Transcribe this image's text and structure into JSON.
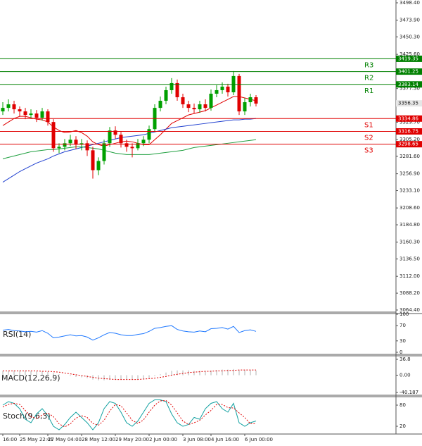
{
  "chart_data": [
    {
      "type": "candlestick",
      "open": [
        3345,
        3350,
        3355,
        3348,
        3345,
        3340,
        3342,
        3336,
        3345,
        3330,
        3293,
        3295,
        3300,
        3305,
        3298,
        3300,
        3290,
        3262,
        3275,
        3300,
        3318,
        3312,
        3300,
        3295,
        3293,
        3300,
        3305,
        3320,
        3350,
        3360,
        3375,
        3385,
        3365,
        3355,
        3350,
        3348,
        3355,
        3350,
        3370,
        3375,
        3380,
        3372,
        3395,
        3345,
        3358,
        3365
      ],
      "high": [
        3358,
        3362,
        3360,
        3352,
        3350,
        3348,
        3347,
        3350,
        3348,
        3334,
        3300,
        3306,
        3312,
        3310,
        3306,
        3304,
        3295,
        3280,
        3305,
        3323,
        3324,
        3316,
        3305,
        3300,
        3306,
        3310,
        3325,
        3355,
        3366,
        3380,
        3392,
        3390,
        3370,
        3360,
        3356,
        3360,
        3362,
        3376,
        3382,
        3386,
        3384,
        3402,
        3398,
        3364,
        3370,
        3368
      ],
      "low": [
        3340,
        3345,
        3342,
        3338,
        3334,
        3335,
        3330,
        3332,
        3325,
        3288,
        3286,
        3290,
        3296,
        3292,
        3290,
        3282,
        3250,
        3255,
        3270,
        3295,
        3306,
        3294,
        3288,
        3280,
        3290,
        3296,
        3300,
        3316,
        3345,
        3355,
        3370,
        3360,
        3350,
        3344,
        3342,
        3343,
        3345,
        3346,
        3365,
        3370,
        3366,
        3368,
        3340,
        3340,
        3352,
        3352
      ],
      "close": [
        3350,
        3355,
        3348,
        3345,
        3340,
        3342,
        3336,
        3345,
        3330,
        3293,
        3295,
        3300,
        3305,
        3298,
        3300,
        3290,
        3262,
        3275,
        3300,
        3318,
        3312,
        3300,
        3295,
        3293,
        3300,
        3305,
        3320,
        3350,
        3360,
        3375,
        3385,
        3365,
        3355,
        3350,
        3348,
        3355,
        3350,
        3370,
        3375,
        3380,
        3372,
        3395,
        3345,
        3358,
        3365,
        3356
      ],
      "up_color": "#00a000",
      "down_color": "#e00000",
      "overlays": [
        {
          "color": "#e00000",
          "values": [
            3325,
            3330,
            3335,
            3338,
            3338,
            3336,
            3334,
            3333,
            3330,
            3323,
            3318,
            3315,
            3316,
            3318,
            3315,
            3310,
            3302,
            3298,
            3296,
            3298,
            3300,
            3302,
            3303,
            3302,
            3300,
            3298,
            3298,
            3305,
            3312,
            3320,
            3328,
            3332,
            3336,
            3340,
            3342,
            3344,
            3346,
            3350,
            3354,
            3358,
            3362,
            3366,
            3366,
            3364,
            3362,
            3360
          ]
        },
        {
          "color": "#2040d0",
          "values": [
            3245,
            3250,
            3255,
            3260,
            3264,
            3268,
            3272,
            3275,
            3278,
            3282,
            3285,
            3288,
            3290,
            3292,
            3294,
            3296,
            3298,
            3300,
            3302,
            3304,
            3306,
            3308,
            3309,
            3310,
            3311,
            3312,
            3314,
            3316,
            3318,
            3320,
            3322,
            3323,
            3324,
            3325,
            3326,
            3327,
            3328,
            3329,
            3330,
            3331,
            3332,
            3333,
            3333,
            3334,
            3334,
            3335
          ]
        },
        {
          "color": "#20a040",
          "values": [
            3278,
            3280,
            3282,
            3284,
            3286,
            3288,
            3289,
            3290,
            3291,
            3291,
            3292,
            3293,
            3294,
            3295,
            3295,
            3294,
            3293,
            3292,
            3290,
            3288,
            3286,
            3285,
            3284,
            3284,
            3284,
            3284,
            3284,
            3285,
            3286,
            3287,
            3288,
            3289,
            3290,
            3292,
            3294,
            3295,
            3296,
            3297,
            3298,
            3299,
            3300,
            3301,
            3302,
            3303,
            3304,
            3305
          ]
        }
      ],
      "levels": [
        {
          "label": "R3",
          "value": 3419.35,
          "color": "#008000"
        },
        {
          "label": "R2",
          "value": 3401.25,
          "color": "#008000"
        },
        {
          "label": "R1",
          "value": 3383.14,
          "color": "#008000"
        },
        {
          "label": "S1",
          "value": 3334.86,
          "color": "#e00000"
        },
        {
          "label": "S2",
          "value": 3316.75,
          "color": "#e00000"
        },
        {
          "label": "S3",
          "value": 3298.65,
          "color": "#e00000"
        }
      ],
      "current_price": 3356.35,
      "ylim": [
        3064.4,
        3498.4
      ],
      "yticks": [
        {
          "value": 3498.4,
          "label": "3498.40"
        },
        {
          "value": 3473.9,
          "label": "3473.90"
        },
        {
          "value": 3450.3,
          "label": "3450.30"
        },
        {
          "value": 3425.6,
          "label": "3425.60"
        },
        {
          "value": 3377.3,
          "label": "3377.30"
        },
        {
          "value": 3329.7,
          "label": "3329.70"
        },
        {
          "value": 3305.2,
          "label": "3305.20"
        },
        {
          "value": 3281.6,
          "label": "3281.60"
        },
        {
          "value": 3256.9,
          "label": "3256.90"
        },
        {
          "value": 3233.1,
          "label": "3233.10"
        },
        {
          "value": 3208.6,
          "label": "3208.60"
        },
        {
          "value": 3184.8,
          "label": "3184.80"
        },
        {
          "value": 3160.3,
          "label": "3160.30"
        },
        {
          "value": 3136.5,
          "label": "3136.50"
        },
        {
          "value": 3112,
          "label": "3112.00"
        },
        {
          "value": 3088.2,
          "label": "3088.20"
        },
        {
          "value": 3064.4,
          "label": "3064.40"
        }
      ],
      "xticks": [
        {
          "value": 0,
          "label": "16:00"
        },
        {
          "value": 3,
          "label": "25 May 22:01"
        },
        {
          "value": 8,
          "label": "27 May 04:00"
        },
        {
          "value": 14,
          "label": "28 May 12:00"
        },
        {
          "value": 20,
          "label": "29 May 20:00"
        },
        {
          "value": 26,
          "label": "2 Jun 00:00"
        },
        {
          "value": 32,
          "label": "3 Jun 08:00"
        },
        {
          "value": 37,
          "label": "4 Jun 16:00"
        },
        {
          "value": 43,
          "label": "6 Jun 00:00"
        }
      ]
    },
    {
      "type": "line",
      "title": "RSI(14)",
      "ylim": [
        0,
        100
      ],
      "yticks": [
        100,
        70,
        30,
        0
      ],
      "series": [
        {
          "color": "#1e78ff",
          "values": [
            58,
            60,
            57,
            56,
            54,
            55,
            53,
            57,
            50,
            38,
            40,
            43,
            46,
            43,
            44,
            40,
            32,
            38,
            46,
            52,
            50,
            46,
            44,
            44,
            47,
            49,
            55,
            63,
            65,
            68,
            70,
            60,
            56,
            54,
            53,
            56,
            54,
            62,
            63,
            65,
            61,
            68,
            52,
            57,
            59,
            55
          ]
        }
      ]
    },
    {
      "type": "bar",
      "title": "MACD(12,26,9)",
      "ylim": [
        -40.187,
        36.8
      ],
      "yticks": [
        36.8,
        {
          "value": 0,
          "label": "0.00"
        },
        -40.187
      ],
      "series": [
        {
          "color": "#b0b0b0",
          "style": "bar",
          "values": [
            10,
            10,
            11,
            11,
            10,
            10,
            9,
            9,
            8,
            5,
            2,
            0,
            -2,
            -4,
            -5,
            -7,
            -10,
            -12,
            -12,
            -11,
            -10,
            -10,
            -10,
            -10,
            -9,
            -8,
            -6,
            -2,
            2,
            6,
            10,
            11,
            11,
            11,
            10,
            10,
            10,
            11,
            12,
            13,
            13,
            14,
            12,
            12,
            12,
            11
          ]
        },
        {
          "color": "#e00000",
          "style": "dashed",
          "values": [
            10,
            10,
            10,
            10,
            10,
            10,
            10,
            9,
            9,
            8,
            7,
            5,
            3,
            1,
            -1,
            -3,
            -5,
            -7,
            -8,
            -9,
            -10,
            -10,
            -10,
            -10,
            -10,
            -9,
            -8,
            -7,
            -5,
            -3,
            0,
            2,
            4,
            6,
            7,
            8,
            9,
            9,
            10,
            10,
            11,
            11,
            12,
            12,
            12,
            12
          ]
        }
      ]
    },
    {
      "type": "line",
      "title": "Stoch(9,6,3)",
      "ylim": [
        0,
        100
      ],
      "yticks": [
        80,
        20
      ],
      "series": [
        {
          "color": "#10a0a0",
          "style": "solid",
          "values": [
            80,
            90,
            85,
            70,
            40,
            30,
            55,
            70,
            50,
            20,
            10,
            25,
            45,
            60,
            45,
            30,
            10,
            30,
            70,
            90,
            85,
            60,
            30,
            20,
            35,
            60,
            85,
            95,
            95,
            90,
            55,
            30,
            20,
            25,
            45,
            40,
            70,
            85,
            90,
            70,
            60,
            85,
            30,
            20,
            30,
            35
          ]
        },
        {
          "color": "#e00000",
          "style": "dashed",
          "values": [
            75,
            82,
            85,
            82,
            65,
            47,
            42,
            52,
            58,
            47,
            27,
            18,
            27,
            43,
            50,
            45,
            28,
            23,
            37,
            63,
            82,
            78,
            58,
            37,
            28,
            38,
            60,
            80,
            92,
            93,
            80,
            58,
            35,
            25,
            30,
            37,
            52,
            65,
            82,
            82,
            73,
            72,
            58,
            45,
            27,
            28
          ]
        }
      ]
    }
  ]
}
